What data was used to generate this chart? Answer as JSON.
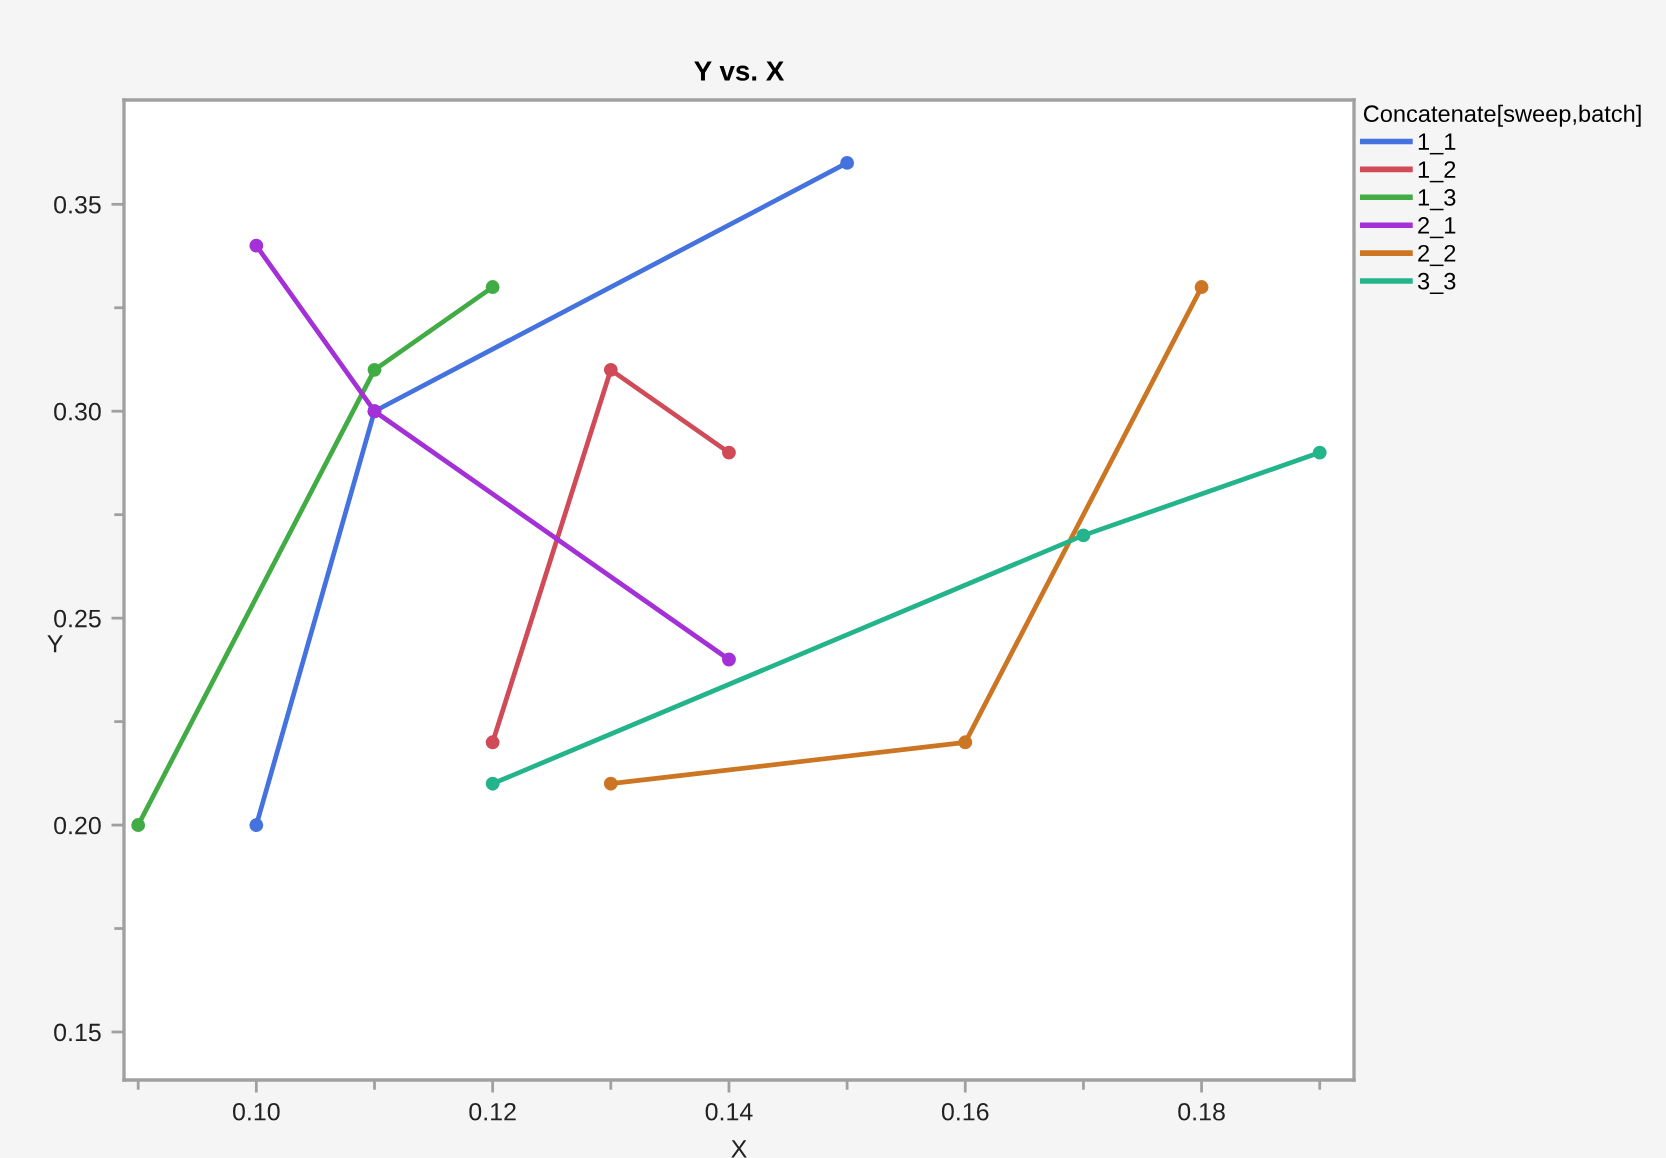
{
  "chart_data": {
    "type": "line",
    "title": "Y vs. X",
    "xlabel": "X",
    "ylabel": "Y",
    "legend_title": "Concatenate[sweep,batch]",
    "legend": "right",
    "marker": "circle",
    "line_style": "solid",
    "grid": false,
    "xlim": [
      0.0888,
      0.1929
    ],
    "ylim": [
      0.1384,
      0.3752
    ],
    "xticks": [
      {
        "value": 0.09,
        "label": null
      },
      {
        "value": 0.1,
        "label": "0.10"
      },
      {
        "value": 0.11,
        "label": null
      },
      {
        "value": 0.12,
        "label": "0.12"
      },
      {
        "value": 0.13,
        "label": null
      },
      {
        "value": 0.14,
        "label": "0.14"
      },
      {
        "value": 0.15,
        "label": null
      },
      {
        "value": 0.16,
        "label": "0.16"
      },
      {
        "value": 0.17,
        "label": null
      },
      {
        "value": 0.18,
        "label": "0.18"
      },
      {
        "value": 0.19,
        "label": null
      }
    ],
    "yticks": [
      {
        "value": 0.15,
        "label": "0.15"
      },
      {
        "value": 0.175,
        "label": null
      },
      {
        "value": 0.2,
        "label": "0.20"
      },
      {
        "value": 0.225,
        "label": null
      },
      {
        "value": 0.25,
        "label": "0.25"
      },
      {
        "value": 0.275,
        "label": null
      },
      {
        "value": 0.3,
        "label": "0.30"
      },
      {
        "value": 0.325,
        "label": null
      },
      {
        "value": 0.35,
        "label": "0.35"
      }
    ],
    "series": [
      {
        "name": "1_1",
        "color": "#4472de",
        "x": [
          0.1,
          0.11,
          0.15
        ],
        "values": [
          0.2,
          0.3,
          0.36
        ]
      },
      {
        "name": "1_2",
        "color": "#d04a57",
        "x": [
          0.12,
          0.13,
          0.14
        ],
        "values": [
          0.22,
          0.31,
          0.29
        ]
      },
      {
        "name": "1_3",
        "color": "#41ab44",
        "x": [
          0.09,
          0.11,
          0.12
        ],
        "values": [
          0.2,
          0.31,
          0.33
        ]
      },
      {
        "name": "2_1",
        "color": "#a431d8",
        "x": [
          0.1,
          0.11,
          0.14
        ],
        "values": [
          0.34,
          0.3,
          0.24
        ]
      },
      {
        "name": "2_2",
        "color": "#cc7522",
        "x": [
          0.13,
          0.16,
          0.18
        ],
        "values": [
          0.21,
          0.22,
          0.33
        ]
      },
      {
        "name": "3_3",
        "color": "#23b48c",
        "x": [
          0.12,
          0.17,
          0.19
        ],
        "values": [
          0.21,
          0.27,
          0.29
        ]
      }
    ]
  }
}
